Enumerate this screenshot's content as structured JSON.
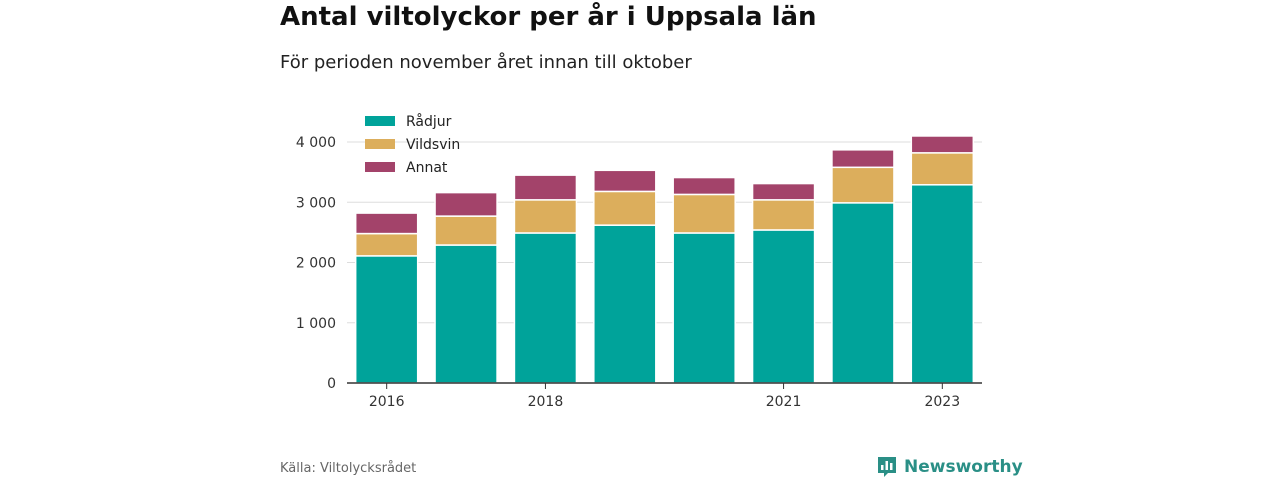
{
  "header": {
    "title": "Antal viltolyckor per år i Uppsala län",
    "subtitle": "För perioden november året innan till oktober"
  },
  "footer": {
    "source": "Källa: Viltolycksrådet",
    "brand": "Newsworthy"
  },
  "colors": {
    "radjur": "#00a39a",
    "vildsvin": "#dcae5c",
    "annat": "#a3436a",
    "brand": "#2a8f86"
  },
  "chart_data": {
    "type": "bar",
    "stacked": true,
    "categories": [
      "2016",
      "2017",
      "2018",
      "2019",
      "2020",
      "2021",
      "2022",
      "2023"
    ],
    "x_tick_labels": [
      "2016",
      "",
      "2018",
      "",
      "",
      "2021",
      "",
      "2023"
    ],
    "series": [
      {
        "name": "Rådjur",
        "color": "#00a39a",
        "values": [
          2110,
          2290,
          2490,
          2620,
          2490,
          2540,
          2990,
          3290
        ]
      },
      {
        "name": "Vildsvin",
        "color": "#dcae5c",
        "values": [
          370,
          480,
          550,
          560,
          640,
          500,
          590,
          530
        ]
      },
      {
        "name": "Annat",
        "color": "#a3436a",
        "values": [
          340,
          390,
          410,
          350,
          280,
          270,
          290,
          280
        ]
      }
    ],
    "y_ticks": [
      0,
      1000,
      2000,
      3000,
      4000
    ],
    "y_tick_labels": [
      "0",
      "1 000",
      "2 000",
      "3 000",
      "4 000"
    ],
    "ylim": [
      0,
      4000
    ],
    "grid": true,
    "legend_position": "top-left"
  }
}
